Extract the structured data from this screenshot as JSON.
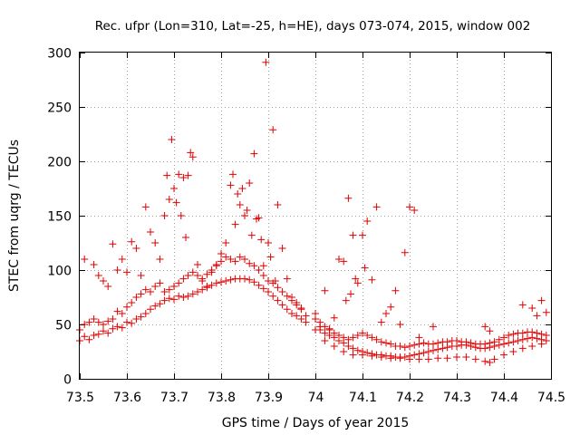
{
  "chart_data": {
    "type": "scatter",
    "title": "Rec. ufpr (Lon=310, Lat=-25, h=HE), days 073-074, 2015, window 002",
    "xlabel": "GPS time / Days of year 2015",
    "ylabel": "STEC from uqrg / TECUs",
    "xlim": [
      73.5,
      74.5
    ],
    "ylim": [
      0,
      300
    ],
    "grid": true,
    "xticks": [
      73.5,
      73.6,
      73.7,
      73.8,
      73.9,
      74.0,
      74.1,
      74.2,
      74.3,
      74.4,
      74.5
    ],
    "xtick_labels": [
      "73.5",
      "73.6",
      "73.7",
      "73.8",
      "73.9",
      "74",
      "74.1",
      "74.2",
      "74.3",
      "74.4",
      "74.5"
    ],
    "yticks": [
      0,
      50,
      100,
      150,
      200,
      250,
      300
    ],
    "ytick_labels": [
      "0",
      "50",
      "100",
      "150",
      "200",
      "250",
      "300"
    ],
    "marker": "+",
    "color": "#e00000",
    "series": [
      {
        "name": "STEC",
        "points": [
          [
            73.5,
            35
          ],
          [
            73.51,
            39
          ],
          [
            73.52,
            36
          ],
          [
            73.53,
            40
          ],
          [
            73.54,
            41
          ],
          [
            73.55,
            44
          ],
          [
            73.56,
            42
          ],
          [
            73.57,
            46
          ],
          [
            73.58,
            48
          ],
          [
            73.59,
            47
          ],
          [
            73.6,
            52
          ],
          [
            73.61,
            51
          ],
          [
            73.62,
            55
          ],
          [
            73.63,
            57
          ],
          [
            73.64,
            60
          ],
          [
            73.65,
            64
          ],
          [
            73.66,
            67
          ],
          [
            73.67,
            69
          ],
          [
            73.68,
            72
          ],
          [
            73.69,
            74
          ],
          [
            73.7,
            73
          ],
          [
            73.71,
            76
          ],
          [
            73.72,
            75
          ],
          [
            73.73,
            76
          ],
          [
            73.74,
            78
          ],
          [
            73.75,
            80
          ],
          [
            73.76,
            82
          ],
          [
            73.77,
            84
          ],
          [
            73.78,
            86
          ],
          [
            73.79,
            88
          ],
          [
            73.8,
            89
          ],
          [
            73.81,
            90
          ],
          [
            73.82,
            91
          ],
          [
            73.83,
            92
          ],
          [
            73.84,
            92
          ],
          [
            73.85,
            92
          ],
          [
            73.86,
            91
          ],
          [
            73.87,
            89
          ],
          [
            73.88,
            86
          ],
          [
            73.89,
            83
          ],
          [
            73.9,
            80
          ],
          [
            73.91,
            76
          ],
          [
            73.92,
            72
          ],
          [
            73.93,
            68
          ],
          [
            73.94,
            64
          ],
          [
            73.95,
            60
          ],
          [
            73.96,
            58
          ],
          [
            73.97,
            55
          ],
          [
            73.98,
            52
          ],
          [
            73.5,
            45
          ],
          [
            73.51,
            50
          ],
          [
            73.52,
            52
          ],
          [
            73.53,
            55
          ],
          [
            73.54,
            52
          ],
          [
            73.55,
            50
          ],
          [
            73.56,
            53
          ],
          [
            73.57,
            55
          ],
          [
            73.58,
            62
          ],
          [
            73.59,
            60
          ],
          [
            73.6,
            66
          ],
          [
            73.61,
            70
          ],
          [
            73.62,
            75
          ],
          [
            73.63,
            78
          ],
          [
            73.64,
            82
          ],
          [
            73.65,
            80
          ],
          [
            73.66,
            85
          ],
          [
            73.67,
            88
          ],
          [
            73.68,
            80
          ],
          [
            73.69,
            82
          ],
          [
            73.7,
            85
          ],
          [
            73.71,
            88
          ],
          [
            73.72,
            92
          ],
          [
            73.73,
            95
          ],
          [
            73.74,
            98
          ],
          [
            73.75,
            95
          ],
          [
            73.76,
            92
          ],
          [
            73.77,
            96
          ],
          [
            73.78,
            100
          ],
          [
            73.79,
            104
          ],
          [
            73.8,
            108
          ],
          [
            73.81,
            112
          ],
          [
            73.82,
            110
          ],
          [
            73.83,
            108
          ],
          [
            73.84,
            112
          ],
          [
            73.85,
            110
          ],
          [
            73.86,
            106
          ],
          [
            73.87,
            104
          ],
          [
            73.88,
            100
          ],
          [
            73.89,
            95
          ],
          [
            73.9,
            90
          ],
          [
            73.91,
            88
          ],
          [
            73.92,
            84
          ],
          [
            73.93,
            80
          ],
          [
            73.94,
            76
          ],
          [
            73.95,
            72
          ],
          [
            73.96,
            68
          ],
          [
            73.97,
            64
          ],
          [
            73.98,
            58
          ],
          [
            73.51,
            110
          ],
          [
            73.53,
            105
          ],
          [
            73.54,
            95
          ],
          [
            73.55,
            90
          ],
          [
            73.56,
            85
          ],
          [
            73.57,
            124
          ],
          [
            73.58,
            100
          ],
          [
            73.59,
            110
          ],
          [
            73.6,
            98
          ],
          [
            73.61,
            126
          ],
          [
            73.62,
            120
          ],
          [
            73.63,
            95
          ],
          [
            73.64,
            158
          ],
          [
            73.65,
            135
          ],
          [
            73.66,
            125
          ],
          [
            73.67,
            110
          ],
          [
            73.68,
            150
          ],
          [
            73.685,
            187
          ],
          [
            73.69,
            165
          ],
          [
            73.695,
            220
          ],
          [
            73.7,
            175
          ],
          [
            73.705,
            162
          ],
          [
            73.71,
            188
          ],
          [
            73.715,
            150
          ],
          [
            73.72,
            185
          ],
          [
            73.725,
            130
          ],
          [
            73.73,
            187
          ],
          [
            73.735,
            208
          ],
          [
            73.74,
            204
          ],
          [
            73.75,
            105
          ],
          [
            73.76,
            90
          ],
          [
            73.77,
            85
          ],
          [
            73.78,
            98
          ],
          [
            73.79,
            105
          ],
          [
            73.8,
            115
          ],
          [
            73.81,
            125
          ],
          [
            73.82,
            178
          ],
          [
            73.825,
            188
          ],
          [
            73.83,
            142
          ],
          [
            73.835,
            170
          ],
          [
            73.84,
            160
          ],
          [
            73.845,
            175
          ],
          [
            73.85,
            150
          ],
          [
            73.855,
            155
          ],
          [
            73.86,
            180
          ],
          [
            73.865,
            132
          ],
          [
            73.87,
            207
          ],
          [
            73.875,
            147
          ],
          [
            73.88,
            148
          ],
          [
            73.885,
            128
          ],
          [
            73.89,
            104
          ],
          [
            73.895,
            291
          ],
          [
            73.9,
            125
          ],
          [
            73.905,
            112
          ],
          [
            73.91,
            229
          ],
          [
            73.915,
            90
          ],
          [
            73.92,
            160
          ],
          [
            73.93,
            120
          ],
          [
            73.94,
            92
          ],
          [
            73.95,
            75
          ],
          [
            73.96,
            70
          ],
          [
            73.97,
            65
          ],
          [
            74.01,
            48
          ],
          [
            74.02,
            81
          ],
          [
            74.03,
            46
          ],
          [
            74.04,
            56
          ],
          [
            74.05,
            110
          ],
          [
            74.06,
            108
          ],
          [
            74.065,
            72
          ],
          [
            74.07,
            166
          ],
          [
            74.075,
            78
          ],
          [
            74.08,
            132
          ],
          [
            74.085,
            92
          ],
          [
            74.09,
            88
          ],
          [
            74.1,
            132
          ],
          [
            74.105,
            102
          ],
          [
            74.11,
            145
          ],
          [
            74.12,
            91
          ],
          [
            74.13,
            158
          ],
          [
            74.14,
            52
          ],
          [
            74.15,
            60
          ],
          [
            74.16,
            66
          ],
          [
            74.17,
            81
          ],
          [
            74.18,
            50
          ],
          [
            74.19,
            116
          ],
          [
            74.2,
            158
          ],
          [
            74.21,
            155
          ],
          [
            74.22,
            38
          ],
          [
            74.25,
            48
          ],
          [
            74.36,
            48
          ],
          [
            74.37,
            44
          ],
          [
            74.44,
            68
          ],
          [
            74.46,
            65
          ],
          [
            74.47,
            58
          ],
          [
            74.48,
            72
          ],
          [
            74.49,
            61
          ],
          [
            74.0,
            55
          ],
          [
            74.01,
            45
          ],
          [
            74.02,
            42
          ],
          [
            74.03,
            40
          ],
          [
            74.04,
            38
          ],
          [
            74.05,
            35
          ],
          [
            74.06,
            33
          ],
          [
            74.07,
            36
          ],
          [
            74.08,
            38
          ],
          [
            74.09,
            40
          ],
          [
            74.1,
            42
          ],
          [
            74.11,
            40
          ],
          [
            74.12,
            38
          ],
          [
            74.13,
            36
          ],
          [
            74.14,
            34
          ],
          [
            74.15,
            33
          ],
          [
            74.16,
            32
          ],
          [
            74.17,
            30
          ],
          [
            74.18,
            30
          ],
          [
            74.19,
            29
          ],
          [
            74.2,
            30
          ],
          [
            74.21,
            31
          ],
          [
            74.22,
            32
          ],
          [
            74.23,
            33
          ],
          [
            74.24,
            32
          ],
          [
            74.25,
            32
          ],
          [
            74.26,
            33
          ],
          [
            74.27,
            34
          ],
          [
            74.28,
            34
          ],
          [
            74.29,
            35
          ],
          [
            74.3,
            35
          ],
          [
            74.31,
            34
          ],
          [
            74.32,
            34
          ],
          [
            74.33,
            33
          ],
          [
            74.34,
            32
          ],
          [
            74.35,
            32
          ],
          [
            74.36,
            32
          ],
          [
            74.37,
            33
          ],
          [
            74.38,
            34
          ],
          [
            74.39,
            36
          ],
          [
            74.4,
            38
          ],
          [
            74.41,
            40
          ],
          [
            74.42,
            41
          ],
          [
            74.43,
            42
          ],
          [
            74.44,
            42
          ],
          [
            74.45,
            43
          ],
          [
            74.46,
            43
          ],
          [
            74.47,
            42
          ],
          [
            74.48,
            41
          ],
          [
            74.49,
            40
          ],
          [
            74.0,
            60
          ],
          [
            74.01,
            52
          ],
          [
            74.02,
            48
          ],
          [
            74.03,
            45
          ],
          [
            74.04,
            42
          ],
          [
            74.05,
            40
          ],
          [
            74.06,
            38
          ],
          [
            74.07,
            30
          ],
          [
            74.08,
            28
          ],
          [
            74.09,
            26
          ],
          [
            74.1,
            25
          ],
          [
            74.11,
            24
          ],
          [
            74.12,
            23
          ],
          [
            74.13,
            22
          ],
          [
            74.14,
            22
          ],
          [
            74.15,
            21
          ],
          [
            74.16,
            21
          ],
          [
            74.17,
            20
          ],
          [
            74.18,
            20
          ],
          [
            74.19,
            20
          ],
          [
            74.2,
            21
          ],
          [
            74.21,
            22
          ],
          [
            74.22,
            23
          ],
          [
            74.23,
            24
          ],
          [
            74.24,
            25
          ],
          [
            74.25,
            26
          ],
          [
            74.26,
            27
          ],
          [
            74.27,
            28
          ],
          [
            74.28,
            29
          ],
          [
            74.29,
            30
          ],
          [
            74.3,
            30
          ],
          [
            74.31,
            31
          ],
          [
            74.32,
            31
          ],
          [
            74.33,
            30
          ],
          [
            74.34,
            29
          ],
          [
            74.35,
            28
          ],
          [
            74.36,
            28
          ],
          [
            74.37,
            29
          ],
          [
            74.38,
            30
          ],
          [
            74.39,
            31
          ],
          [
            74.4,
            32
          ],
          [
            74.41,
            33
          ],
          [
            74.42,
            34
          ],
          [
            74.43,
            35
          ],
          [
            74.44,
            36
          ],
          [
            74.45,
            37
          ],
          [
            74.46,
            38
          ],
          [
            74.47,
            37
          ],
          [
            74.48,
            36
          ],
          [
            74.49,
            35
          ],
          [
            74.0,
            45
          ],
          [
            74.02,
            35
          ],
          [
            74.04,
            30
          ],
          [
            74.06,
            25
          ],
          [
            74.08,
            22
          ],
          [
            74.1,
            22
          ],
          [
            74.12,
            21
          ],
          [
            74.14,
            20
          ],
          [
            74.16,
            19
          ],
          [
            74.18,
            19
          ],
          [
            74.2,
            18
          ],
          [
            74.22,
            18
          ],
          [
            74.24,
            18
          ],
          [
            74.26,
            19
          ],
          [
            74.28,
            19
          ],
          [
            74.3,
            20
          ],
          [
            74.32,
            20
          ],
          [
            74.34,
            18
          ],
          [
            74.36,
            16
          ],
          [
            74.37,
            15
          ],
          [
            74.38,
            18
          ],
          [
            74.4,
            22
          ],
          [
            74.42,
            25
          ],
          [
            74.44,
            28
          ],
          [
            74.46,
            30
          ],
          [
            74.48,
            32
          ]
        ]
      }
    ]
  }
}
